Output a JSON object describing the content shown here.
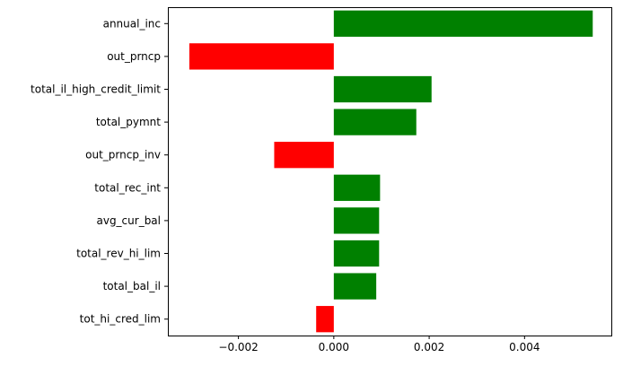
{
  "chart_data": {
    "type": "bar",
    "orientation": "horizontal",
    "categories": [
      "annual_inc",
      "out_prncp",
      "total_il_high_credit_limit",
      "total_pymnt",
      "out_prncp_inv",
      "total_rec_int",
      "avg_cur_bal",
      "total_rev_hi_lim",
      "total_bal_il",
      "tot_hi_cred_lim"
    ],
    "values": [
      0.00543,
      -0.00303,
      0.00205,
      0.00173,
      -0.00125,
      0.00097,
      0.00095,
      0.00095,
      0.00089,
      -0.00037
    ],
    "bar_colors": [
      "#008000",
      "#ff0000",
      "#008000",
      "#008000",
      "#ff0000",
      "#008000",
      "#008000",
      "#008000",
      "#008000",
      "#ff0000"
    ],
    "positive_color": "#008000",
    "negative_color": "#ff0000",
    "xticks": [
      -0.002,
      0.0,
      0.002,
      0.004
    ],
    "xtick_labels": [
      "−0.002",
      "0.000",
      "0.002",
      "0.004"
    ],
    "xlim": [
      -0.00348,
      0.00582
    ],
    "title": "",
    "xlabel": "",
    "ylabel": "",
    "grid": false,
    "legend": "none"
  }
}
